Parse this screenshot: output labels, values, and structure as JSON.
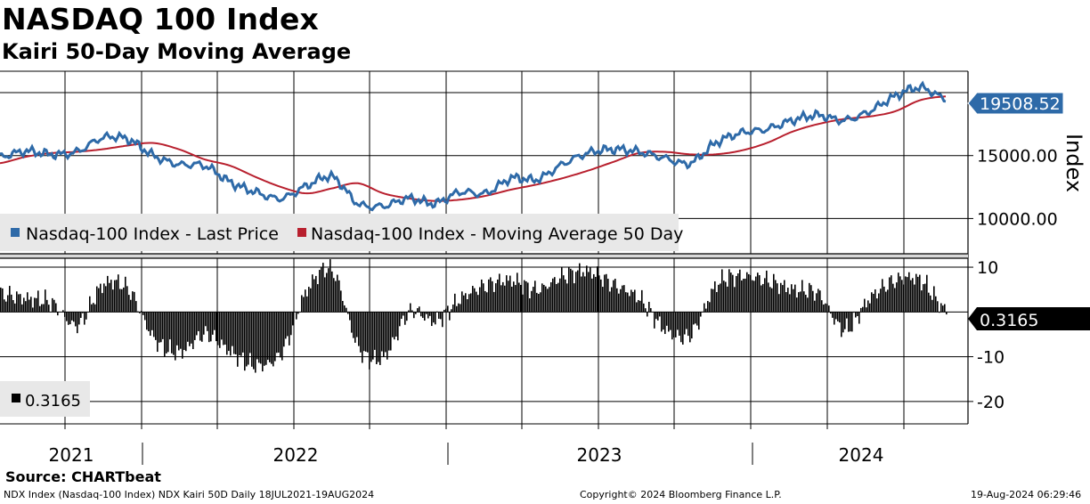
{
  "title": "NASDAQ 100 Index",
  "subtitle": "Kairi 50-Day Moving Average",
  "source": "Source: CHARTbeat",
  "footer": {
    "left": "NDX Index (Nasdaq-100 Index) NDX Kairi 50D  Daily 18JUL2021-19AUG2024",
    "center": "Copyright© 2024 Bloomberg Finance L.P.",
    "right": "19-Aug-2024 06:29:46"
  },
  "colors": {
    "price": "#2e6aa8",
    "ma": "#b8202e",
    "bars": "#000000",
    "price_tag": "#2e6aa8"
  },
  "chart_data": [
    {
      "type": "line",
      "title": "NASDAQ 100 Index",
      "ylabel": "Index",
      "ylim": [
        7200,
        21700
      ],
      "y_ticks": [
        10000,
        15000
      ],
      "y_tick_labels": [
        "10000.00",
        "15000.00"
      ],
      "x_tick_labels": [
        "2021",
        "2022",
        "2023",
        "2024"
      ],
      "legend": "bottom-left",
      "grid": true,
      "last_value_label": "19508.52",
      "x_dates": [
        "2021-07",
        "2021-08",
        "2021-09",
        "2021-10",
        "2021-11",
        "2021-12",
        "2022-01",
        "2022-02",
        "2022-03",
        "2022-04",
        "2022-05",
        "2022-06",
        "2022-07",
        "2022-08",
        "2022-09",
        "2022-10",
        "2022-11",
        "2022-12",
        "2023-01",
        "2023-02",
        "2023-03",
        "2023-04",
        "2023-05",
        "2023-06",
        "2023-07",
        "2023-08",
        "2023-09",
        "2023-10",
        "2023-11",
        "2023-12",
        "2024-01",
        "2024-02",
        "2024-03",
        "2024-04",
        "2024-05",
        "2024-06",
        "2024-07",
        "2024-08"
      ],
      "series": [
        {
          "name": "Nasdaq-100 Index - Last Price",
          "values": [
            14900,
            15350,
            15100,
            15300,
            16400,
            16300,
            15000,
            14300,
            14200,
            12900,
            12100,
            11600,
            12600,
            13300,
            11200,
            11000,
            11600,
            11200,
            12100,
            12000,
            13200,
            13100,
            14300,
            15200,
            15500,
            15300,
            14800,
            14400,
            16000,
            16800,
            17100,
            17800,
            18200,
            17800,
            18500,
            19700,
            20400,
            19508.52
          ]
        },
        {
          "name": "Nasdaq-100 Index - Moving Average 50 Day",
          "values": [
            14400,
            14900,
            15200,
            15300,
            15500,
            15800,
            16000,
            15500,
            14700,
            14200,
            13300,
            12500,
            12000,
            12400,
            12800,
            12000,
            11600,
            11400,
            11500,
            11800,
            12300,
            12700,
            13200,
            13800,
            14500,
            15200,
            15300,
            15100,
            15100,
            15400,
            16000,
            16900,
            17500,
            17900,
            18100,
            18500,
            19400,
            19700
          ]
        }
      ]
    },
    {
      "type": "bar",
      "title": "Kairi 50-Day Moving Average",
      "ylim": [
        -25,
        12
      ],
      "y_ticks": [
        10,
        -10,
        -20
      ],
      "y_tick_labels": [
        "10",
        "-10",
        "-20"
      ],
      "zero_label": "0.3165",
      "legend_label": "0.3165",
      "x_dates": [
        "2021-07",
        "2021-08",
        "2021-09",
        "2021-10",
        "2021-11",
        "2021-12",
        "2022-01",
        "2022-02",
        "2022-03",
        "2022-04",
        "2022-05",
        "2022-06",
        "2022-07",
        "2022-08",
        "2022-09",
        "2022-10",
        "2022-11",
        "2022-12",
        "2023-01",
        "2023-02",
        "2023-03",
        "2023-04",
        "2023-05",
        "2023-06",
        "2023-07",
        "2023-08",
        "2023-09",
        "2023-10",
        "2023-11",
        "2023-12",
        "2024-01",
        "2024-02",
        "2024-03",
        "2024-04",
        "2024-05",
        "2024-06",
        "2024-07",
        "2024-08"
      ],
      "series": [
        {
          "name": "Kairi 50D",
          "values": [
            4,
            3,
            2,
            -3,
            6,
            5,
            -6,
            -9,
            -5,
            -9,
            -12,
            -9,
            5,
            9,
            -8,
            -10,
            0,
            -2,
            3,
            6,
            7,
            5,
            8,
            9,
            6,
            3,
            -4,
            -5,
            6,
            8,
            7,
            5,
            4,
            -4,
            3,
            7,
            7,
            0.3165
          ]
        }
      ]
    }
  ]
}
